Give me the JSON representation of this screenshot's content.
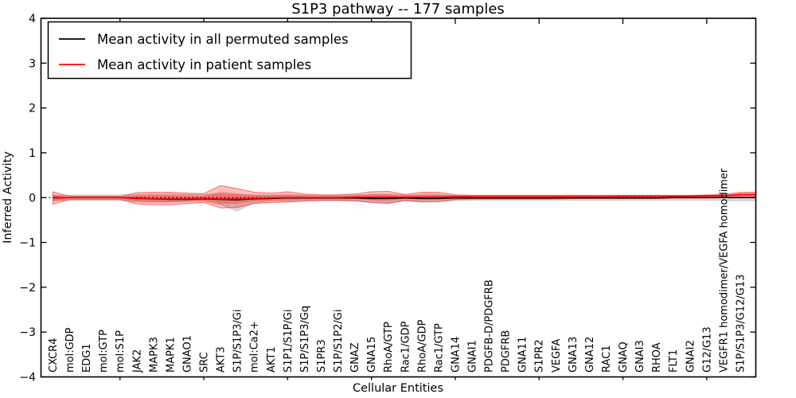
{
  "title": "S1P3 pathway -- 177 samples",
  "axes": {
    "xlabel": "Cellular Entities",
    "ylabel": "Inferred Activity",
    "y_ticks": [
      4,
      3,
      2,
      1,
      0,
      -1,
      -2,
      -3,
      -4
    ],
    "ylim": [
      -4,
      4
    ]
  },
  "legend": {
    "position": "upper left",
    "entries": [
      {
        "label": "Mean activity in all permuted samples",
        "color": "#000000"
      },
      {
        "label": "Mean activity in patient samples",
        "color": "#ff0000"
      }
    ]
  },
  "colors": {
    "permuted_line": "#000000",
    "patient_line": "#ff0000",
    "patient_band": "rgba(255,0,0,0.25)",
    "permuted_band": "rgba(110,110,110,0.28)",
    "zero_line": "#000000",
    "frame": "#000000"
  },
  "chart_data": {
    "type": "line",
    "title": "S1P3 pathway -- 177 samples",
    "xlabel": "Cellular Entities",
    "ylabel": "Inferred Activity",
    "ylim": [
      -4,
      4
    ],
    "grid": false,
    "zero_line": "dotted",
    "legend_position": "upper left",
    "categories": [
      "CXCR4",
      "mol:GDP",
      "EDG1",
      "mol:GTP",
      "mol:S1P",
      "JAK2",
      "MAPK3",
      "MAPK1",
      "GNAO1",
      "SRC",
      "AKT3",
      "S1P/S1P3/Gi",
      "mol:Ca2+",
      "AKT1",
      "S1P1/S1P/Gi",
      "S1P/S1P3/Gq",
      "S1PR3",
      "S1P/S1P2/Gi",
      "GNAZ",
      "GNA15",
      "RhoA/GTP",
      "Rac1/GDP",
      "RhoA/GDP",
      "Rac1/GTP",
      "GNA14",
      "GNAI1",
      "PDGFB-D/PDGFRB",
      "PDGFRB",
      "GNA11",
      "S1PR2",
      "VEGFA",
      "GNA13",
      "GNA12",
      "RAC1",
      "GNAQ",
      "GNAI3",
      "RHOA",
      "FLT1",
      "GNAI2",
      "G12/G13",
      "VEGFR1 homodimer/VEGFA homodimer",
      "S1P/S1P3/G12/G13"
    ],
    "series": [
      {
        "name": "Mean activity in all permuted samples",
        "color": "#000000",
        "values": [
          0,
          0,
          0,
          0,
          0,
          -0.01,
          -0.03,
          -0.04,
          -0.04,
          -0.03,
          -0.04,
          -0.05,
          -0.03,
          -0.02,
          -0.01,
          -0.01,
          -0.01,
          -0.01,
          -0.01,
          -0.02,
          -0.02,
          -0.01,
          -0.02,
          -0.02,
          -0.01,
          -0.01,
          -0.01,
          -0.01,
          -0.01,
          -0.01,
          -0.01,
          -0.01,
          -0.01,
          -0.01,
          -0.01,
          -0.01,
          -0.01,
          0,
          0,
          0,
          0,
          0
        ],
        "band_hi": [
          0.05,
          0.06,
          0.06,
          0.06,
          0.06,
          0.07,
          0.08,
          0.08,
          0.07,
          0.07,
          0.08,
          0.07,
          0.06,
          0.06,
          0.06,
          0.06,
          0.06,
          0.06,
          0.06,
          0.07,
          0.07,
          0.06,
          0.06,
          0.06,
          0.06,
          0.05,
          0.05,
          0.05,
          0.05,
          0.05,
          0.05,
          0.05,
          0.05,
          0.05,
          0.05,
          0.05,
          0.05,
          0.05,
          0.05,
          0.05,
          0.06,
          0.06
        ],
        "band_lo": [
          -0.06,
          -0.07,
          -0.07,
          -0.07,
          -0.07,
          -0.09,
          -0.1,
          -0.1,
          -0.09,
          -0.08,
          -0.16,
          -0.3,
          -0.12,
          -0.08,
          -0.08,
          -0.07,
          -0.07,
          -0.07,
          -0.08,
          -0.1,
          -0.12,
          -0.08,
          -0.1,
          -0.09,
          -0.07,
          -0.06,
          -0.06,
          -0.06,
          -0.06,
          -0.06,
          -0.06,
          -0.06,
          -0.06,
          -0.06,
          -0.06,
          -0.06,
          -0.06,
          -0.06,
          -0.06,
          -0.06,
          -0.07,
          -0.07
        ]
      },
      {
        "name": "Mean activity in patient samples",
        "color": "#ff0000",
        "values": [
          -0.01,
          0,
          0,
          0,
          0,
          -0.02,
          -0.03,
          -0.03,
          -0.03,
          -0.02,
          -0.03,
          -0.03,
          -0.02,
          -0.01,
          0,
          0,
          0,
          0,
          0.01,
          0.01,
          0.01,
          0.01,
          0.01,
          0.01,
          0.02,
          0.02,
          0.02,
          0.02,
          0.02,
          0.02,
          0.02,
          0.02,
          0.02,
          0.02,
          0.03,
          0.03,
          0.03,
          0.03,
          0.03,
          0.04,
          0.04,
          0.07
        ],
        "band_hi": [
          0.13,
          0.03,
          0.03,
          0.03,
          0.03,
          0.11,
          0.12,
          0.12,
          0.1,
          0.09,
          0.27,
          0.2,
          0.12,
          0.1,
          0.13,
          0.08,
          0.06,
          0.06,
          0.08,
          0.13,
          0.14,
          0.07,
          0.12,
          0.12,
          0.06,
          0.05,
          0.05,
          0.05,
          0.05,
          0.05,
          0.05,
          0.05,
          0.05,
          0.05,
          0.05,
          0.05,
          0.05,
          0.05,
          0.05,
          0.06,
          0.07,
          0.12
        ],
        "band_lo": [
          -0.15,
          -0.04,
          -0.04,
          -0.04,
          -0.04,
          -0.14,
          -0.16,
          -0.16,
          -0.13,
          -0.11,
          -0.23,
          -0.22,
          -0.13,
          -0.11,
          -0.1,
          -0.08,
          -0.06,
          -0.06,
          -0.07,
          -0.11,
          -0.13,
          -0.06,
          -0.09,
          -0.09,
          -0.04,
          -0.03,
          -0.03,
          -0.03,
          -0.03,
          -0.03,
          -0.03,
          -0.02,
          -0.02,
          -0.02,
          -0.02,
          -0.02,
          -0.02,
          -0.01,
          -0.01,
          -0.01,
          0.0,
          0.02
        ]
      }
    ]
  }
}
